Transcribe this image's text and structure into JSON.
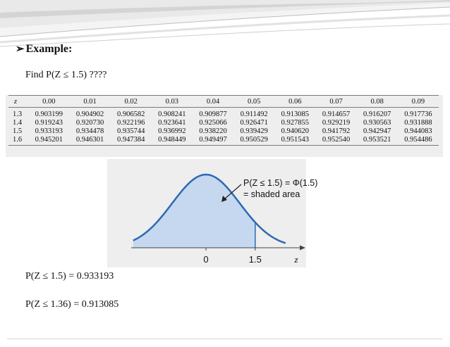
{
  "heading": {
    "bullet": "➢",
    "text": "Example:"
  },
  "prompt": "Find P(Z ≤ 1.5) ????",
  "table": {
    "columns": [
      "z",
      "0.00",
      "0.01",
      "0.02",
      "0.03",
      "0.04",
      "0.05",
      "0.06",
      "0.07",
      "0.08",
      "0.09"
    ],
    "rows": [
      [
        "1.3",
        "0.903199",
        "0.904902",
        "0.906582",
        "0.908241",
        "0.909877",
        "0.911492",
        "0.913085",
        "0.914657",
        "0.916207",
        "0.917736"
      ],
      [
        "1.4",
        "0.919243",
        "0.920730",
        "0.922196",
        "0.923641",
        "0.925066",
        "0.926471",
        "0.927855",
        "0.929219",
        "0.930563",
        "0.931888"
      ],
      [
        "1.5",
        "0.933193",
        "0.934478",
        "0.935744",
        "0.936992",
        "0.938220",
        "0.939429",
        "0.940620",
        "0.941792",
        "0.942947",
        "0.944083"
      ],
      [
        "1.6",
        "0.945201",
        "0.946301",
        "0.947384",
        "0.948449",
        "0.949497",
        "0.950529",
        "0.951543",
        "0.952540",
        "0.953521",
        "0.954486"
      ]
    ]
  },
  "figure": {
    "annotation_line1": "P(Z ≤ 1.5) = Φ(1.5)",
    "annotation_line2": "= shaded area",
    "tick_zero": "0",
    "tick_value": "1.5",
    "axis_label": "z",
    "shade_upper": 1.5,
    "colors": {
      "shade": "#c5d8ef",
      "curve": "#2d6ab3",
      "axis": "#444444"
    }
  },
  "results": [
    "P(Z ≤ 1.5) = 0.933193",
    "P(Z ≤ 1.36) = 0.913085"
  ]
}
